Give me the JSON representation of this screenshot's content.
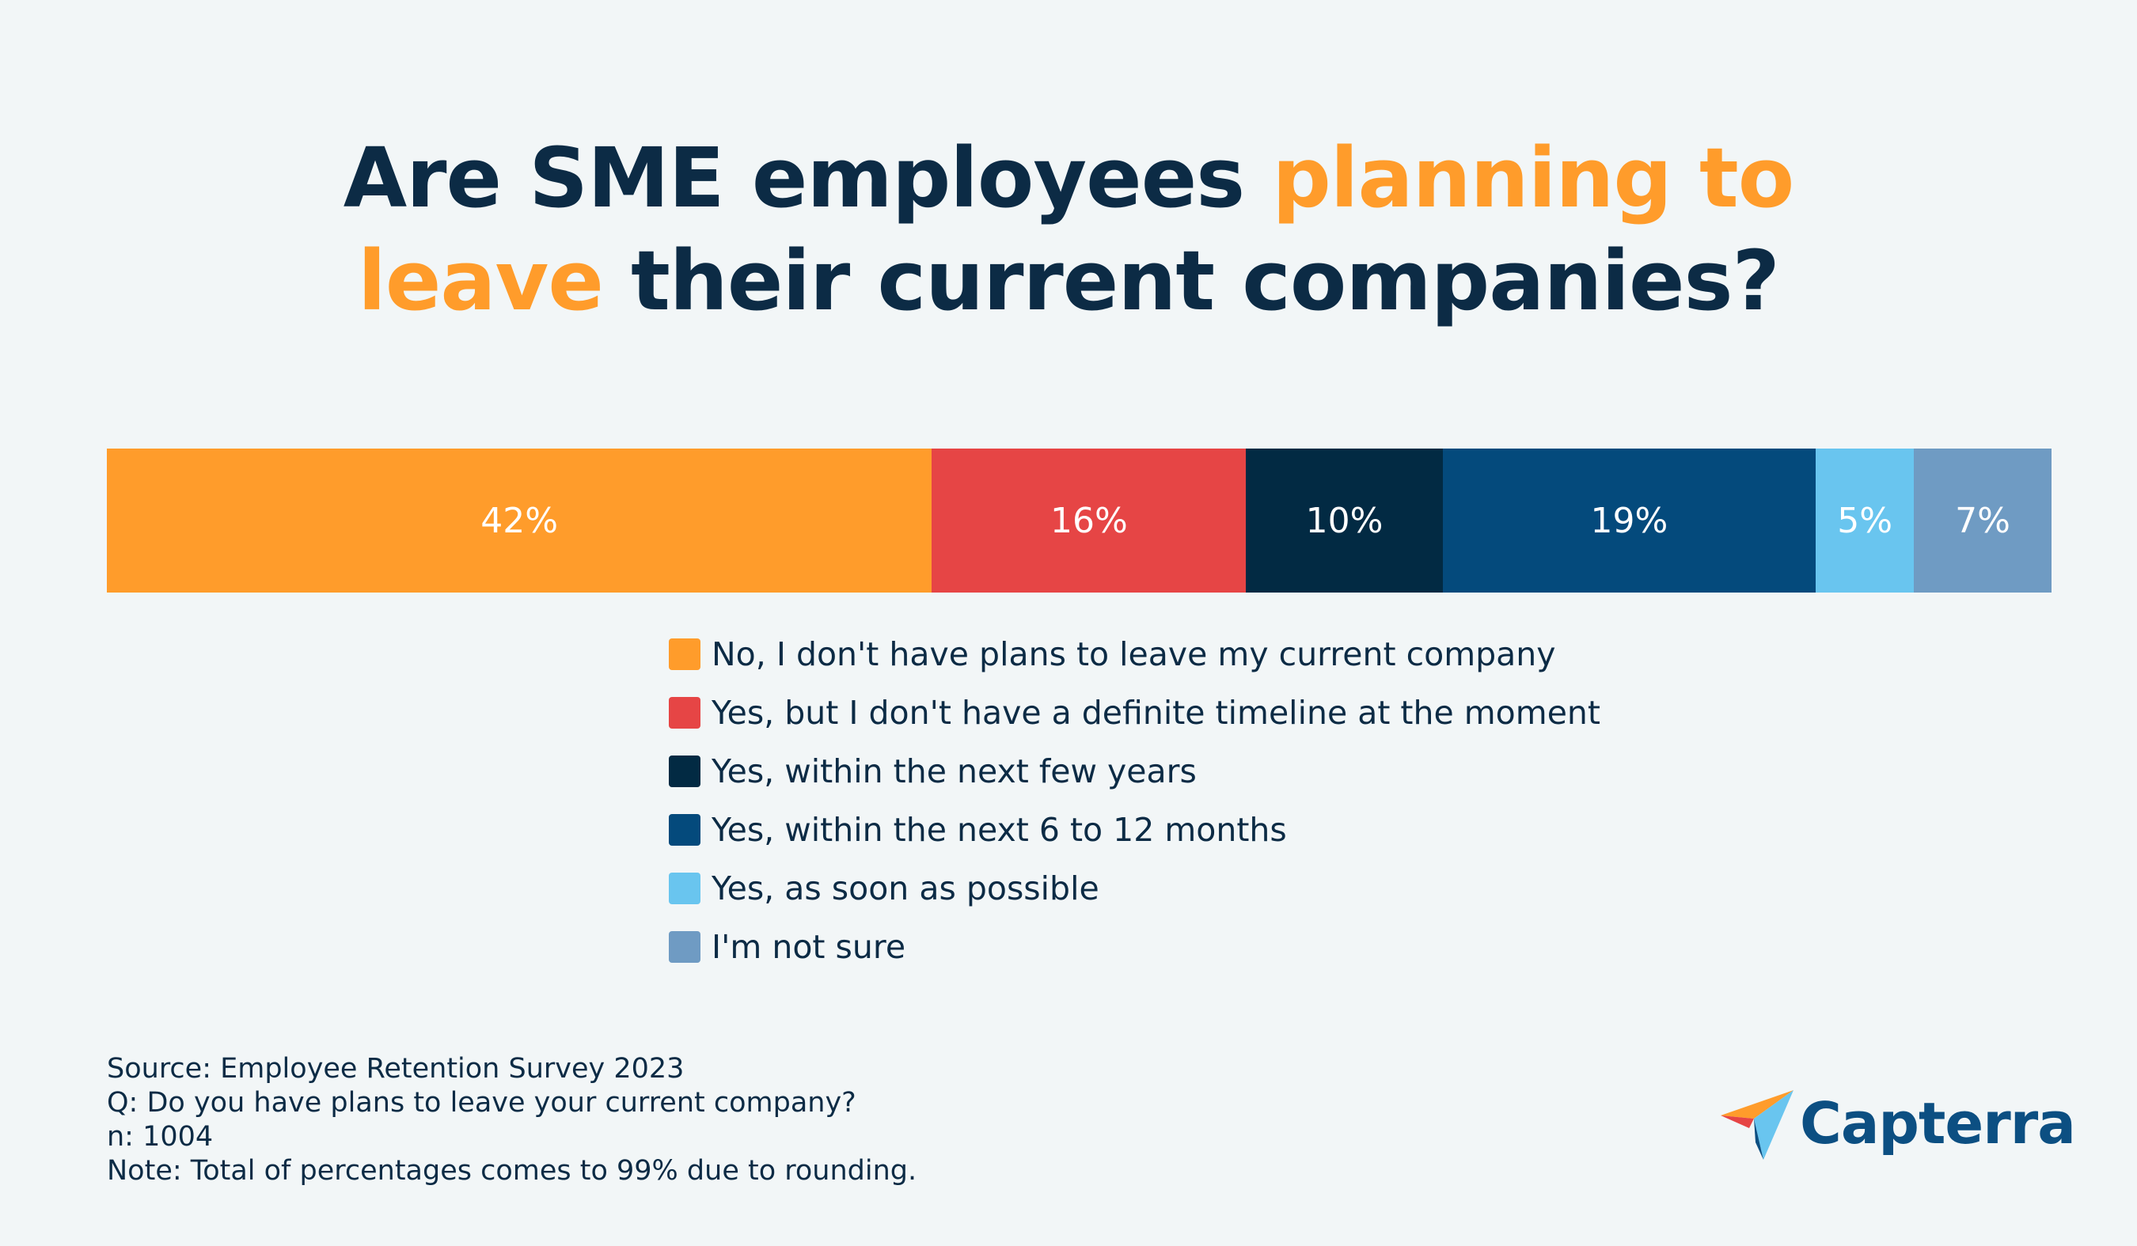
{
  "title": {
    "part1": "Are SME employees ",
    "highlight1": "planning to",
    "highlight2": "leave",
    "part2": " their current companies?"
  },
  "chart_data": {
    "type": "bar",
    "orientation": "horizontal-stacked",
    "title": "Are SME employees planning to leave their current companies?",
    "legend_position": "bottom",
    "grid": false,
    "series": [
      {
        "name": "No, I don't have plans to leave my current company",
        "value": 42,
        "label": "42%",
        "color": "#ff9c2b"
      },
      {
        "name": "Yes, but I don't have a definite timeline at the moment",
        "value": 16,
        "label": "16%",
        "color": "#e64545"
      },
      {
        "name": "Yes, within the next few years",
        "value": 10,
        "label": "10%",
        "color": "#022a43"
      },
      {
        "name": "Yes, within the next 6 to 12 months",
        "value": 19,
        "label": "19%",
        "color": "#044a7c"
      },
      {
        "name": "Yes, as soon as possible",
        "value": 5,
        "label": "5%",
        "color": "#69c5ef"
      },
      {
        "name": "I'm not sure",
        "value": 7,
        "label": "7%",
        "color": "#6f9bc3"
      }
    ]
  },
  "notes": {
    "source": "Source: Employee Retention Survey 2023",
    "question": "Q: Do you have plans to leave your current company?",
    "n": "n: 1004",
    "note": "Note: Total of percentages comes to 99% due to rounding."
  },
  "logo": {
    "text": "Capterra",
    "icon": "capterra-arrow-icon"
  }
}
